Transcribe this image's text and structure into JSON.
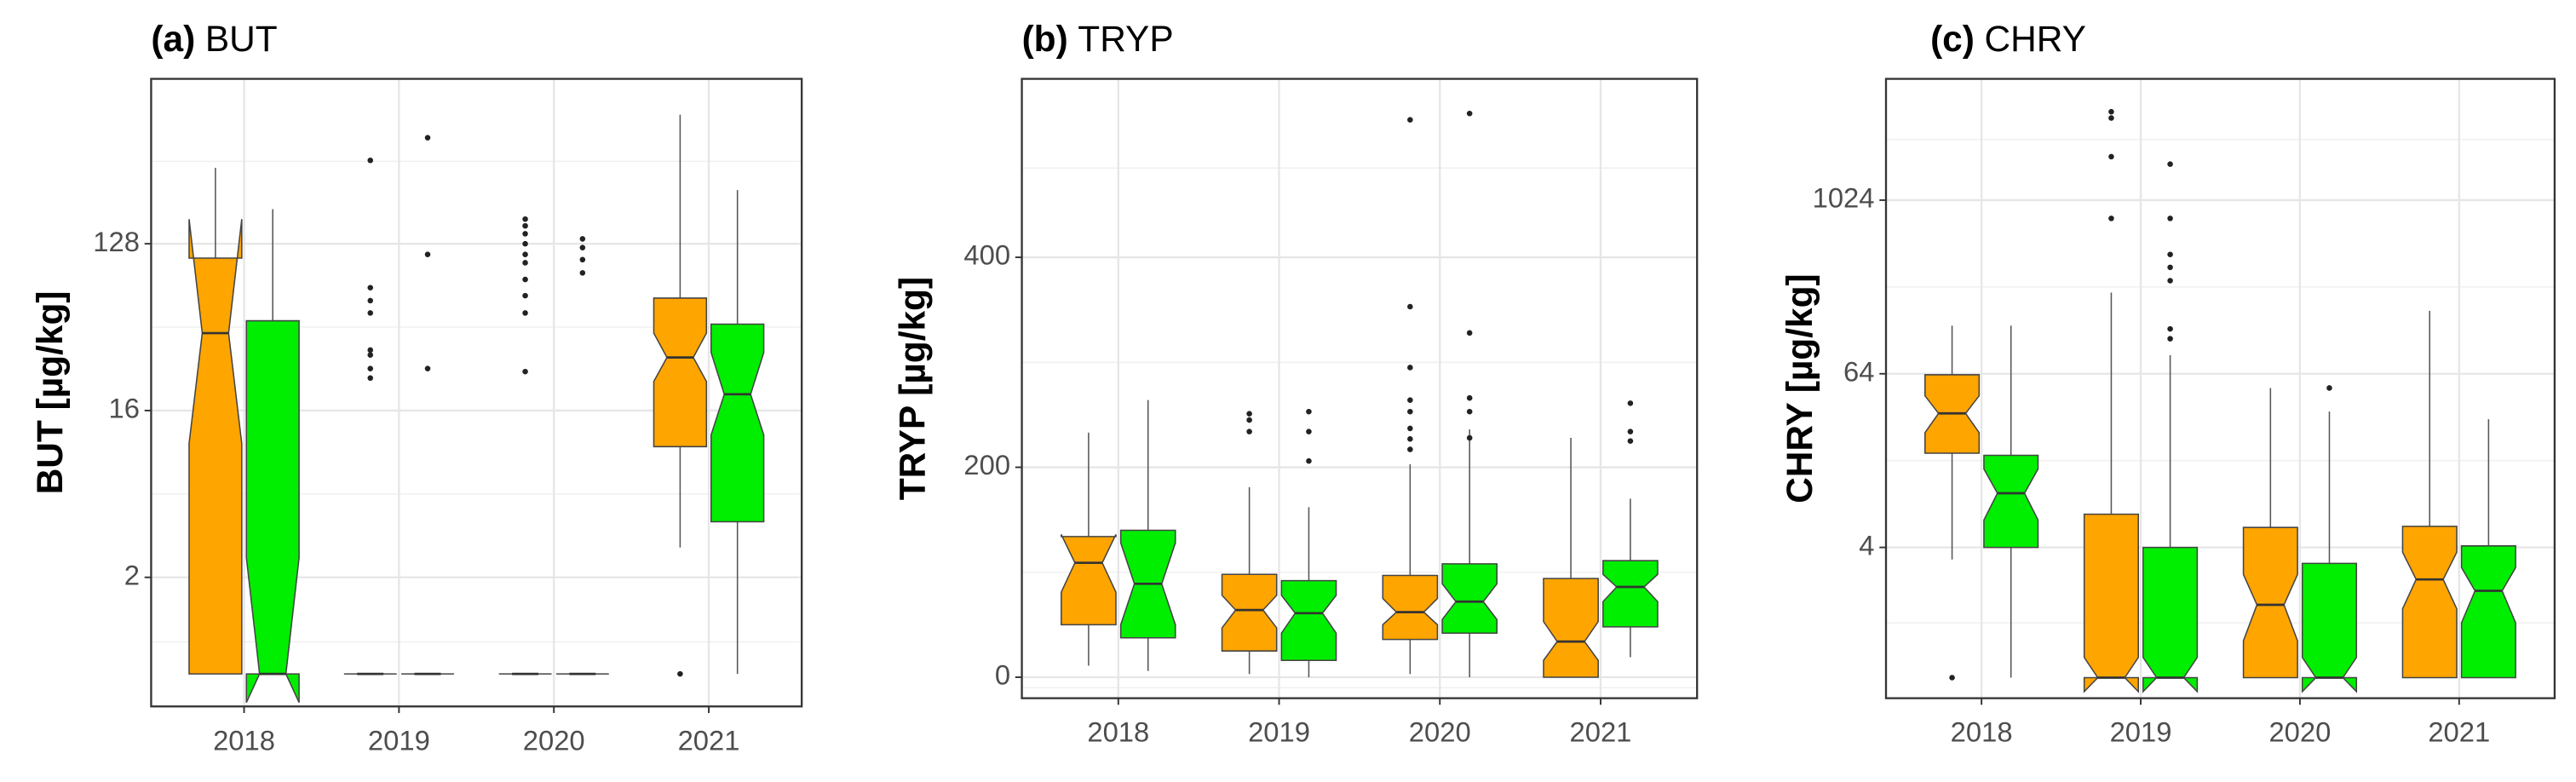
{
  "chart_data": [
    {
      "type": "box",
      "panel": "(a)",
      "title": "BUT",
      "ylabel": "BUT [µg/kg]",
      "log": true,
      "grid": true,
      "categories": [
        "2018",
        "2019",
        "2020",
        "2021"
      ],
      "ylim": [
        0.4,
        1000
      ],
      "yticks": [
        2,
        16,
        128
      ],
      "series": [
        {
          "color": "#ffa500",
          "boxes": [
            {
              "low": 0.6,
              "q1": 0.6,
              "median": 42,
              "q3": 107,
              "high": 330,
              "notch_low": 10.6,
              "notch_high": 174,
              "outliers": []
            },
            {
              "low": 0.6,
              "q1": 0.6,
              "median": 0.6,
              "q3": 0.6,
              "high": 0.6,
              "notch_low": 0.6,
              "notch_high": 0.6,
              "outliers": [
                362,
                74,
                63,
                54,
                34,
                32,
                27,
                24
              ]
            },
            {
              "low": 0.6,
              "q1": 0.6,
              "median": 0.6,
              "q3": 0.6,
              "high": 0.6,
              "notch_low": 0.6,
              "notch_high": 0.6,
              "outliers": [
                174,
                160,
                145,
                128,
                112,
                101,
                82,
                67,
                54,
                26
              ]
            },
            {
              "low": 2.9,
              "q1": 10.2,
              "median": 31,
              "q3": 65,
              "high": 640,
              "notch_low": 23,
              "notch_high": 42,
              "outliers": [
                0.6
              ]
            }
          ]
        },
        {
          "color": "#00ee00",
          "boxes": [
            {
              "low": 0.6,
              "q1": 0.6,
              "median": 0.6,
              "q3": 49,
              "high": 197,
              "notch_low": 0.42,
              "notch_high": 2.55,
              "outliers": []
            },
            {
              "low": 0.6,
              "q1": 0.6,
              "median": 0.6,
              "q3": 0.6,
              "high": 0.6,
              "notch_low": 0.6,
              "notch_high": 0.6,
              "outliers": [
                480,
                112,
                27
              ]
            },
            {
              "low": 0.6,
              "q1": 0.6,
              "median": 0.6,
              "q3": 0.6,
              "high": 0.6,
              "notch_low": 0.6,
              "notch_high": 0.6,
              "outliers": [
                136,
                122,
                105,
                89
              ]
            },
            {
              "low": 0.6,
              "q1": 4,
              "median": 19.6,
              "q3": 47,
              "high": 250,
              "notch_low": 11.8,
              "notch_high": 33,
              "outliers": []
            }
          ]
        }
      ]
    },
    {
      "type": "box",
      "panel": "(b)",
      "title": "TRYP",
      "ylabel": "TRYP [µg/kg]",
      "log": false,
      "grid": true,
      "categories": [
        "2018",
        "2019",
        "2020",
        "2021"
      ],
      "ylim": [
        -20,
        570
      ],
      "yticks": [
        0,
        200,
        400
      ],
      "series": [
        {
          "color": "#ffa500",
          "boxes": [
            {
              "low": 11,
              "q1": 50,
              "median": 109,
              "q3": 134,
              "high": 233,
              "notch_low": 81,
              "notch_high": 136,
              "outliers": []
            },
            {
              "low": 3,
              "q1": 25,
              "median": 64,
              "q3": 98,
              "high": 181,
              "notch_low": 47,
              "notch_high": 78,
              "outliers": [
                251,
                245,
                234
              ]
            },
            {
              "low": 3,
              "q1": 36,
              "median": 62,
              "q3": 97,
              "high": 203,
              "notch_low": 50,
              "notch_high": 75,
              "outliers": [
                531,
                353,
                295,
                264,
                253,
                237,
                227,
                217
              ]
            },
            {
              "low": 0,
              "q1": 0,
              "median": 34,
              "q3": 94,
              "high": 228,
              "notch_low": 16,
              "notch_high": 53,
              "outliers": []
            }
          ]
        },
        {
          "color": "#00ee00",
          "boxes": [
            {
              "low": 6,
              "q1": 37.5,
              "median": 89,
              "q3": 140,
              "high": 264,
              "notch_low": 50,
              "notch_high": 128,
              "outliers": []
            },
            {
              "low": 0,
              "q1": 16,
              "median": 61,
              "q3": 92,
              "high": 162,
              "notch_low": 42,
              "notch_high": 78,
              "outliers": [
                253,
                234,
                206
              ]
            },
            {
              "low": 0,
              "q1": 42,
              "median": 72,
              "q3": 108,
              "high": 236,
              "notch_low": 55,
              "notch_high": 89,
              "outliers": [
                537,
                328,
                266,
                253,
                228
              ]
            },
            {
              "low": 19,
              "q1": 48,
              "median": 86,
              "q3": 111,
              "high": 170,
              "notch_low": 72,
              "notch_high": 98,
              "outliers": [
                261,
                234,
                225
              ]
            }
          ]
        }
      ]
    },
    {
      "type": "box",
      "panel": "(c)",
      "title": "CHRY",
      "ylabel": "CHRY [µg/kg]",
      "log": true,
      "grid": true,
      "categories": [
        "2018",
        "2019",
        "2020",
        "2021"
      ],
      "ylim": [
        0.36,
        7100
      ],
      "yticks": [
        4,
        64,
        1024
      ],
      "series": [
        {
          "color": "#ffa500",
          "boxes": [
            {
              "low": 3.3,
              "q1": 18,
              "median": 34,
              "q3": 63,
              "high": 138,
              "notch_low": 25,
              "notch_high": 45,
              "outliers": [
                0.5
              ]
            },
            {
              "low": 0.5,
              "q1": 0.5,
              "median": 0.5,
              "q3": 6.8,
              "high": 234,
              "notch_low": 0.4,
              "notch_high": 0.69,
              "outliers": [
                4200,
                3800,
                2050,
                765
              ]
            },
            {
              "low": 0.5,
              "q1": 0.5,
              "median": 1.6,
              "q3": 5.5,
              "high": 51,
              "notch_low": 0.9,
              "notch_high": 2.6,
              "outliers": []
            },
            {
              "low": 0.5,
              "q1": 0.5,
              "median": 2.4,
              "q3": 5.6,
              "high": 175,
              "notch_low": 1.5,
              "notch_high": 3.7,
              "outliers": []
            }
          ]
        },
        {
          "color": "#00ee00",
          "boxes": [
            {
              "low": 0.5,
              "q1": 4,
              "median": 9.5,
              "q3": 17.4,
              "high": 138,
              "notch_low": 6.2,
              "notch_high": 14,
              "outliers": []
            },
            {
              "low": 0.5,
              "q1": 0.5,
              "median": 0.5,
              "q3": 4,
              "high": 86,
              "notch_low": 0.4,
              "notch_high": 0.69,
              "outliers": [
                1820,
                765,
                430,
                350,
                283,
                131,
                112
              ]
            },
            {
              "low": 0.5,
              "q1": 0.5,
              "median": 0.5,
              "q3": 3.1,
              "high": 35,
              "notch_low": 0.4,
              "notch_high": 0.69,
              "outliers": [
                51
              ]
            },
            {
              "low": 0.5,
              "q1": 0.5,
              "median": 2.0,
              "q3": 4.1,
              "high": 31,
              "notch_low": 1.2,
              "notch_high": 2.9,
              "outliers": []
            }
          ]
        }
      ]
    }
  ]
}
